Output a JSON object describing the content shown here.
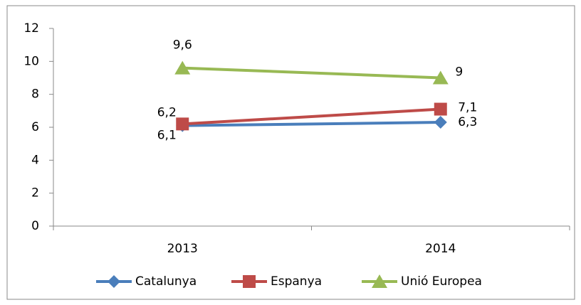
{
  "chart_data": {
    "type": "line",
    "categories": [
      "2013",
      "2014"
    ],
    "series": [
      {
        "name": "Catalunya",
        "color": "#4a7ebb",
        "marker": "diamond",
        "values": [
          6.1,
          6.3
        ],
        "value_labels": [
          "6,1",
          "6,3"
        ]
      },
      {
        "name": "Espanya",
        "color": "#be4b48",
        "marker": "square",
        "values": [
          6.2,
          7.1
        ],
        "value_labels": [
          "6,2",
          "7,1"
        ]
      },
      {
        "name": "Unió Europea",
        "color": "#98b954",
        "marker": "triangle",
        "values": [
          9.6,
          9
        ],
        "value_labels": [
          "9,6",
          "9"
        ]
      }
    ],
    "ylim": [
      0,
      12
    ],
    "yticks": [
      0,
      2,
      4,
      6,
      8,
      10,
      12
    ],
    "grid": false,
    "legend": "bottom"
  }
}
